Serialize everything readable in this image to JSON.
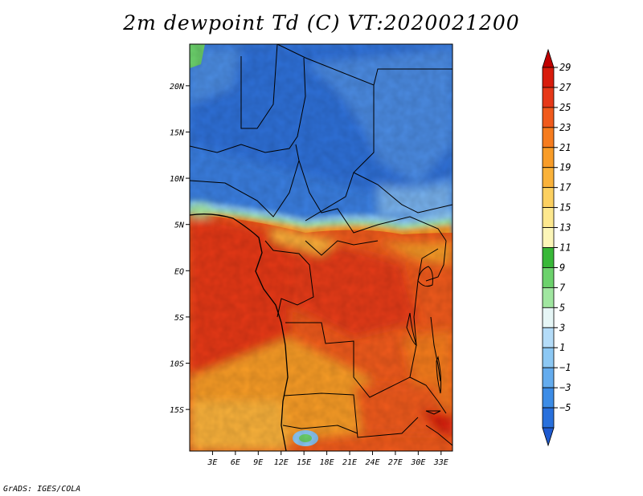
{
  "title": "2m dewpoint Td (C) VT:2020021200",
  "credit": "GrADS: IGES/COLA",
  "map": {
    "lat_labels": [
      "20N",
      "15N",
      "10N",
      "5N",
      "EQ",
      "5S",
      "10S",
      "15S"
    ],
    "lon_labels": [
      "3E",
      "6E",
      "9E",
      "12E",
      "15E",
      "18E",
      "21E",
      "24E",
      "27E",
      "30E",
      "33E"
    ],
    "lon_range": [
      0,
      34.5
    ],
    "lat_range": [
      -19.5,
      24.5
    ]
  },
  "colorbar": {
    "labels": [
      "29",
      "27",
      "25",
      "23",
      "21",
      "19",
      "17",
      "15",
      "13",
      "11",
      "9",
      "7",
      "5",
      "3",
      "1",
      "−1",
      "−3",
      "−5"
    ],
    "colors": [
      "#c00000",
      "#d81c0c",
      "#e63818",
      "#f05a1c",
      "#f67c1e",
      "#f89c28",
      "#fab23a",
      "#fcd060",
      "#fde88e",
      "#fcf6b8",
      "#38b838",
      "#6cd26c",
      "#a0e6a0",
      "#e6f6f6",
      "#b4dcf8",
      "#8cc8f4",
      "#64acee",
      "#3c8ce6",
      "#2870dc",
      "#1e5ad0"
    ]
  }
}
